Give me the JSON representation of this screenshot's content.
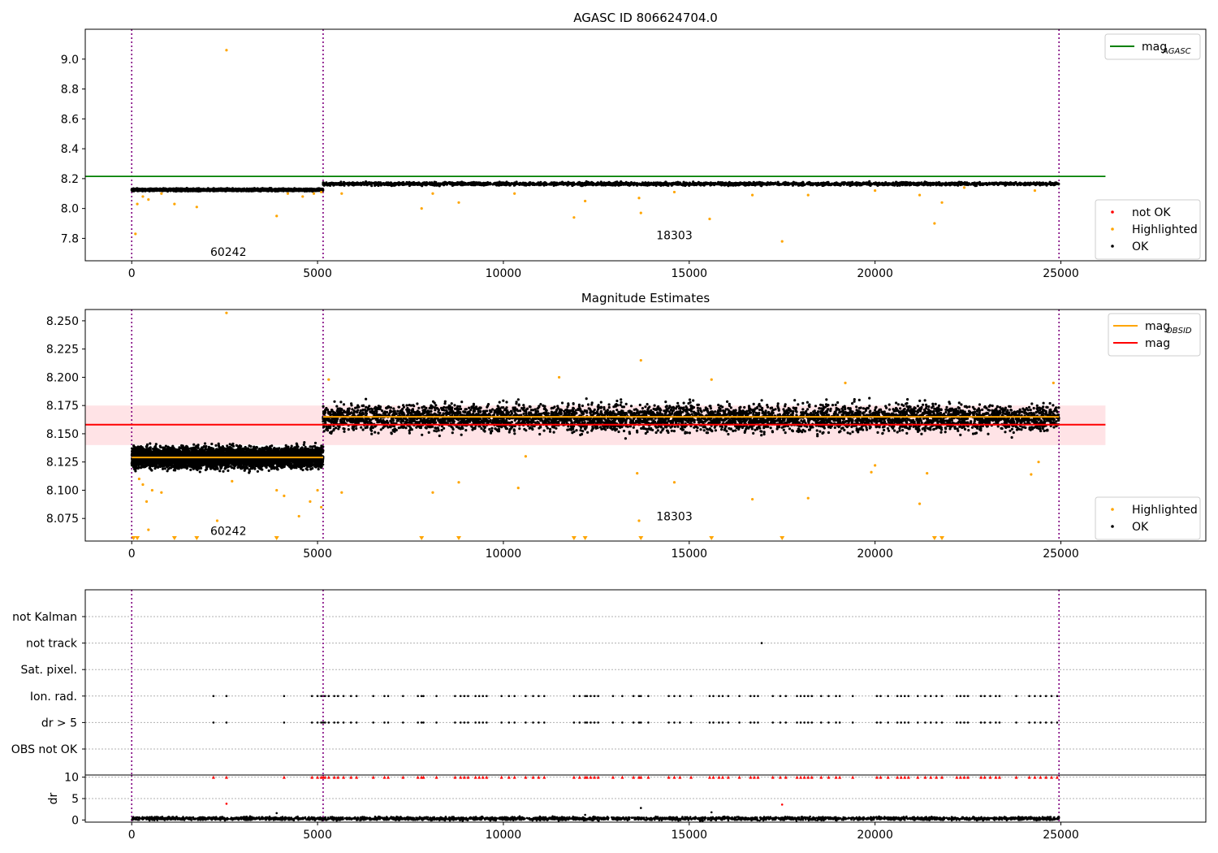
{
  "chart_data": [
    {
      "type": "scatter",
      "title": "AGASC ID 806624704.0",
      "xlim": [
        -1250,
        28900
      ],
      "ylim": [
        7.65,
        9.2
      ],
      "x_ticks": [
        0,
        5000,
        10000,
        15000,
        20000,
        25000
      ],
      "y_ticks": [
        7.8,
        8.0,
        8.2,
        8.4,
        8.6,
        8.8,
        9.0
      ],
      "y_tick_labels": [
        "7.8",
        "8.0",
        "8.2",
        "8.4",
        "8.6",
        "8.8",
        "9.0"
      ],
      "obs_boundaries": [
        0,
        5150,
        24950
      ],
      "obs_labels": [
        {
          "text": "60242",
          "x": 2600,
          "y": 7.71
        },
        {
          "text": "18303",
          "x": 14600,
          "y": 7.82
        }
      ],
      "lines": [
        {
          "name": "mag",
          "subscript": "AGASC",
          "color": "#008000",
          "x": [
            -1250,
            26200
          ],
          "y": [
            8.215,
            8.215
          ]
        }
      ],
      "segments": [
        {
          "x_start": 0,
          "x_end": 5150,
          "center": 8.125,
          "spread": 0.006,
          "color": "#000000"
        },
        {
          "x_start": 5150,
          "x_end": 24950,
          "center": 8.165,
          "spread": 0.008,
          "color": "#000000"
        }
      ],
      "highlighted_points": [
        [
          2550,
          9.06
        ],
        [
          100,
          7.83
        ],
        [
          150,
          8.03
        ],
        [
          300,
          8.08
        ],
        [
          450,
          8.06
        ],
        [
          800,
          8.1
        ],
        [
          1150,
          8.03
        ],
        [
          1750,
          8.01
        ],
        [
          3900,
          7.95
        ],
        [
          4200,
          8.1
        ],
        [
          4600,
          8.08
        ],
        [
          4900,
          8.1
        ],
        [
          5100,
          8.11
        ],
        [
          5650,
          8.1
        ],
        [
          7800,
          8.0
        ],
        [
          8100,
          8.1
        ],
        [
          8800,
          8.04
        ],
        [
          10300,
          8.1
        ],
        [
          11900,
          7.94
        ],
        [
          12200,
          8.05
        ],
        [
          13650,
          8.07
        ],
        [
          13700,
          7.97
        ],
        [
          14600,
          8.11
        ],
        [
          15550,
          7.93
        ],
        [
          16700,
          8.09
        ],
        [
          17500,
          7.78
        ],
        [
          18200,
          8.09
        ],
        [
          20000,
          8.12
        ],
        [
          21200,
          8.09
        ],
        [
          21600,
          7.9
        ],
        [
          21800,
          8.04
        ],
        [
          22400,
          8.14
        ],
        [
          24300,
          8.12
        ]
      ],
      "legends": [
        {
          "entries": [
            {
              "label": "mag",
              "sub": "AGASC",
              "color": "#008000",
              "kind": "line"
            }
          ]
        },
        {
          "entries": [
            {
              "label": "not OK",
              "color": "#ff0000",
              "kind": "point"
            },
            {
              "label": "Highlighted",
              "color": "#ffa500",
              "kind": "point"
            },
            {
              "label": "OK",
              "color": "#000000",
              "kind": "point"
            }
          ]
        }
      ]
    },
    {
      "type": "scatter",
      "title": "Magnitude Estimates",
      "xlim": [
        -1250,
        28900
      ],
      "ylim": [
        8.055,
        8.26
      ],
      "x_ticks": [
        0,
        5000,
        10000,
        15000,
        20000,
        25000
      ],
      "y_ticks": [
        8.075,
        8.1,
        8.125,
        8.15,
        8.175,
        8.2,
        8.225,
        8.25
      ],
      "y_tick_labels": [
        "8.075",
        "8.100",
        "8.125",
        "8.150",
        "8.175",
        "8.200",
        "8.225",
        "8.250"
      ],
      "obs_boundaries": [
        0,
        5150,
        24950
      ],
      "obs_labels": [
        {
          "text": "60242",
          "x": 2600,
          "y": 8.064
        },
        {
          "text": "18303",
          "x": 14600,
          "y": 8.077
        }
      ],
      "band": {
        "x": [
          -1250,
          26200
        ],
        "y": [
          8.14,
          8.175
        ],
        "color": "#ffc0c8"
      },
      "lines": [
        {
          "name": "mag",
          "color": "#ff0000",
          "x": [
            -1250,
            26200
          ],
          "y": [
            8.158,
            8.158
          ]
        },
        {
          "name": "mag",
          "subscript": "OBSID",
          "color": "#ffa500",
          "x": [
            0,
            5150
          ],
          "y": [
            8.129,
            8.129
          ]
        },
        {
          "name": "mag",
          "subscript": "OBSID",
          "color": "#ffa500",
          "x": [
            5150,
            24950
          ],
          "y": [
            8.165,
            8.165
          ]
        }
      ],
      "segments": [
        {
          "x_start": 0,
          "x_end": 5150,
          "center": 8.129,
          "spread": 0.007,
          "color": "#000000"
        },
        {
          "x_start": 5150,
          "x_end": 24950,
          "center": 8.164,
          "spread": 0.009,
          "color": "#000000"
        }
      ],
      "highlighted_points": [
        [
          2550,
          8.257
        ],
        [
          13700,
          8.215
        ],
        [
          5300,
          8.198
        ],
        [
          11500,
          8.2
        ],
        [
          15600,
          8.198
        ],
        [
          19200,
          8.195
        ],
        [
          24800,
          8.195
        ],
        [
          200,
          8.11
        ],
        [
          300,
          8.105
        ],
        [
          400,
          8.09
        ],
        [
          450,
          8.065
        ],
        [
          550,
          8.1
        ],
        [
          800,
          8.098
        ],
        [
          2300,
          8.073
        ],
        [
          2700,
          8.108
        ],
        [
          3900,
          8.1
        ],
        [
          4100,
          8.095
        ],
        [
          4500,
          8.077
        ],
        [
          4800,
          8.09
        ],
        [
          5000,
          8.1
        ],
        [
          5100,
          8.085
        ],
        [
          5650,
          8.098
        ],
        [
          8100,
          8.098
        ],
        [
          8800,
          8.107
        ],
        [
          10400,
          8.102
        ],
        [
          10600,
          8.13
        ],
        [
          13600,
          8.115
        ],
        [
          13650,
          8.073
        ],
        [
          14600,
          8.107
        ],
        [
          16700,
          8.092
        ],
        [
          18200,
          8.093
        ],
        [
          19900,
          8.116
        ],
        [
          20000,
          8.122
        ],
        [
          21200,
          8.088
        ],
        [
          21400,
          8.115
        ],
        [
          24200,
          8.114
        ],
        [
          24400,
          8.125
        ]
      ],
      "clipped_markers_x": [
        50,
        150,
        1150,
        1750,
        3900,
        7800,
        8800,
        11900,
        12200,
        13700,
        15600,
        17500,
        21600,
        21800
      ],
      "legends": [
        {
          "entries": [
            {
              "label": "mag",
              "sub": "OBSID",
              "color": "#ffa500",
              "kind": "line"
            },
            {
              "label": "mag",
              "color": "#ff0000",
              "kind": "line"
            }
          ]
        },
        {
          "entries": [
            {
              "label": "Highlighted",
              "color": "#ffa500",
              "kind": "point"
            },
            {
              "label": "OK",
              "color": "#000000",
              "kind": "point"
            }
          ]
        }
      ]
    },
    {
      "type": "scatter",
      "xlim": [
        -1250,
        28900
      ],
      "x_ticks": [
        0,
        5000,
        10000,
        15000,
        20000,
        25000
      ],
      "obs_boundaries": [
        0,
        5150,
        24950
      ],
      "flag_categories": [
        "not Kalman",
        "not track",
        "Sat. pixel.",
        "Ion. rad.",
        "dr > 5",
        "OBS not OK"
      ],
      "flag_events": {
        "not track": [
          16950
        ],
        "Ion. rad.": [
          2200,
          2550,
          4100,
          4850,
          5000,
          5100,
          5150,
          5200,
          5300,
          5450,
          5550,
          5700,
          5900,
          6050,
          6500,
          6800,
          6900,
          7300,
          7700,
          7800,
          7850,
          8200,
          8700,
          8850,
          8950,
          9050,
          9250,
          9350,
          9450,
          9550,
          9950,
          10150,
          10300,
          10600,
          10800,
          10950,
          11100,
          11900,
          12050,
          12200,
          12250,
          12350,
          12450,
          12550,
          12950,
          13200,
          13500,
          13650,
          13700,
          13900,
          14450,
          14600,
          14750,
          15050,
          15550,
          15650,
          15800,
          15900,
          16050,
          16350,
          16650,
          16750,
          16850,
          17250,
          17450,
          17600,
          17900,
          18000,
          18100,
          18200,
          18300,
          18550,
          18750,
          18950,
          19050,
          19400,
          20050,
          20150,
          20350,
          20600,
          20700,
          20800,
          20900,
          21150,
          21350,
          21500,
          21650,
          21800,
          22200,
          22300,
          22400,
          22500,
          22850,
          22950,
          23100,
          23250,
          23350,
          23800,
          24150,
          24300,
          24450,
          24600,
          24750,
          24900
        ],
        "dr > 5": [
          2200,
          2550,
          4100,
          4850,
          5000,
          5100,
          5150,
          5200,
          5300,
          5450,
          5550,
          5700,
          5900,
          6050,
          6500,
          6800,
          6900,
          7300,
          7700,
          7800,
          7850,
          8200,
          8700,
          8850,
          8950,
          9050,
          9250,
          9350,
          9450,
          9550,
          9950,
          10150,
          10300,
          10600,
          10800,
          10950,
          11100,
          11900,
          12050,
          12200,
          12250,
          12350,
          12450,
          12550,
          12950,
          13200,
          13500,
          13650,
          13700,
          13900,
          14450,
          14600,
          14750,
          15050,
          15550,
          15650,
          15800,
          15900,
          16050,
          16350,
          16650,
          16750,
          16850,
          17250,
          17450,
          17600,
          17900,
          18000,
          18100,
          18200,
          18300,
          18550,
          18750,
          18950,
          19050,
          19400,
          20050,
          20150,
          20350,
          20600,
          20700,
          20800,
          20900,
          21150,
          21350,
          21500,
          21650,
          21800,
          22200,
          22300,
          22400,
          22500,
          22850,
          22950,
          23100,
          23250,
          23350,
          23800,
          24150,
          24300,
          24450,
          24600,
          24750,
          24900
        ]
      }
    },
    {
      "type": "scatter",
      "ylabel": "dr",
      "xlim": [
        -1250,
        28900
      ],
      "ylim": [
        -0.5,
        10.5
      ],
      "x_ticks": [
        0,
        5000,
        10000,
        15000,
        20000,
        25000
      ],
      "y_ticks": [
        0,
        5,
        10
      ],
      "obs_boundaries": [
        0,
        5150,
        24950
      ],
      "baseline": {
        "x_start": 0,
        "x_end": 24950,
        "center": 0.35,
        "spread": 0.3,
        "color": "#000000"
      },
      "clipped_value": 10,
      "clipped_color": "#ff0000",
      "outliers": [
        [
          2550,
          3.8
        ],
        [
          17500,
          3.6
        ],
        [
          13700,
          2.8
        ],
        [
          3900,
          1.6
        ],
        [
          15600,
          1.8
        ],
        [
          12200,
          1.2
        ]
      ]
    }
  ]
}
